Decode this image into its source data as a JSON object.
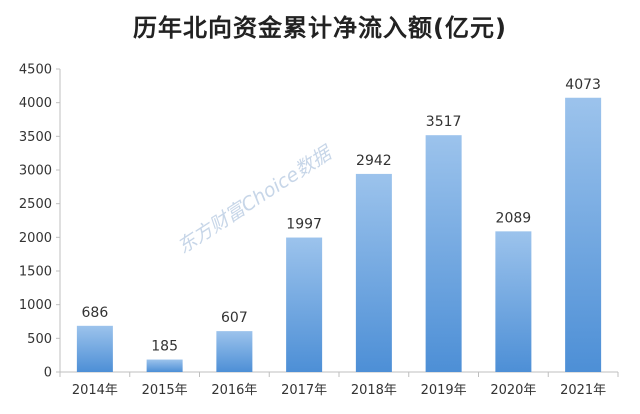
{
  "title": "历年北向资金累计净流入额(亿元)",
  "watermark": "东方财富Choice数据",
  "colors": {
    "bar_top": "#9cc3ec",
    "bar_bottom": "#4d8fd6",
    "axis": "#bfbfbf",
    "text": "#333333"
  },
  "chart_data": {
    "type": "bar",
    "title": "历年北向资金累计净流入额(亿元)",
    "categories": [
      "2014年",
      "2015年",
      "2016年",
      "2017年",
      "2018年",
      "2019年",
      "2020年",
      "2021年"
    ],
    "values": [
      686,
      185,
      607,
      1997,
      2942,
      3517,
      2089,
      4073
    ],
    "data_labels": [
      "686",
      "185",
      "607",
      "1997",
      "2942",
      "3517",
      "2089",
      "4073"
    ],
    "y_ticks": [
      0,
      500,
      1000,
      1500,
      2000,
      2500,
      3000,
      3500,
      4000,
      4500
    ],
    "ylim": [
      0,
      4500
    ],
    "xlabel": "",
    "ylabel": "",
    "grid": false,
    "legend": "none"
  }
}
